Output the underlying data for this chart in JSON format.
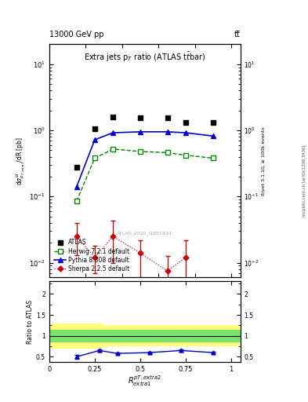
{
  "title": "Extra jets p$_T$ ratio (ATLAS t$\\bar{t}$bar)",
  "header_left": "13000 GeV pp",
  "header_right": "tt̅",
  "ylabel_main": "d$\\sigma^{id}_{p_{T,extra1}}$/dR [pb]",
  "ylabel_ratio": "Ratio to ATLAS",
  "xlabel": "$R^{pT,extra2}_{extra1}$",
  "rivet_label": "Rivet 3.1.10, ≥ 100k events",
  "mcplots_label": "mcplots.cern.ch [arXiv:1306.3436]",
  "atlas_label": "ATLAS_2020_I1801434",
  "x_values": [
    0.15,
    0.25,
    0.35,
    0.5,
    0.65,
    0.75,
    0.9
  ],
  "atlas_y": [
    0.28,
    1.05,
    1.6,
    1.55,
    1.55,
    1.3,
    1.3
  ],
  "herwig_y": [
    0.085,
    0.38,
    0.52,
    0.48,
    0.46,
    0.42,
    0.38
  ],
  "pythia_y": [
    0.14,
    0.72,
    0.92,
    0.95,
    0.95,
    0.92,
    0.82
  ],
  "sherpa_x": [
    0.15,
    0.25,
    0.35,
    0.5,
    0.65,
    0.75
  ],
  "sherpa_y": [
    0.025,
    0.012,
    0.025,
    0.014,
    0.0075,
    0.012
  ],
  "sherpa_yerr_lo": [
    0.012,
    0.005,
    0.015,
    0.008,
    0.004,
    0.007
  ],
  "sherpa_yerr_hi": [
    0.015,
    0.006,
    0.018,
    0.008,
    0.005,
    0.01
  ],
  "ratio_pythia_y": [
    0.5,
    0.65,
    0.58,
    0.6,
    0.65,
    0.6
  ],
  "ratio_pythia_x": [
    0.15,
    0.275,
    0.375,
    0.55,
    0.725,
    0.9
  ],
  "ratio_pythia_err": [
    0.04,
    0.025,
    0.025,
    0.02,
    0.03,
    0.025
  ],
  "band_x_edges": [
    0.0,
    0.2,
    0.3,
    0.43,
    0.58,
    0.7,
    0.82,
    1.05
  ],
  "green_lo_vals": [
    0.85,
    0.85,
    0.85,
    0.85,
    0.85,
    0.85,
    0.85
  ],
  "green_hi_vals": [
    1.15,
    1.15,
    1.15,
    1.15,
    1.15,
    1.15,
    1.15
  ],
  "yellow_lo_vals": [
    0.7,
    0.7,
    0.75,
    0.75,
    0.75,
    0.75,
    0.75
  ],
  "yellow_hi_vals": [
    1.3,
    1.3,
    1.25,
    1.25,
    1.25,
    1.25,
    1.25
  ],
  "color_atlas": "#000000",
  "color_herwig": "#008800",
  "color_pythia": "#0000cc",
  "color_sherpa": "#cc0000",
  "ylim_main": [
    0.006,
    20
  ],
  "ylim_ratio": [
    0.38,
    2.3
  ],
  "xlim": [
    0.0,
    1.05
  ],
  "background": "#ffffff"
}
